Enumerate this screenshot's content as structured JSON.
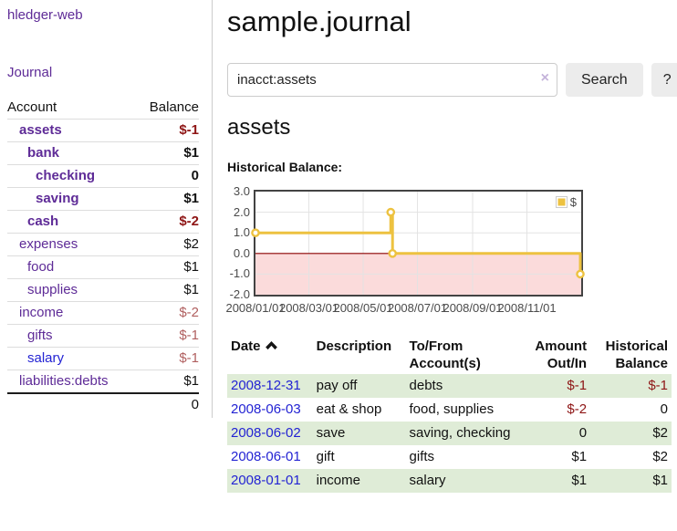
{
  "app_title": "hledger-web",
  "sidebar": {
    "journal_link": "Journal",
    "accounts": {
      "col_account": "Account",
      "col_balance": "Balance",
      "rows": [
        {
          "name": "assets",
          "balance": "$-1",
          "depth": 1,
          "bold": true,
          "balance_style": "neg-strong"
        },
        {
          "name": "bank",
          "balance": "$1",
          "depth": 2,
          "bold": true,
          "balance_style": "pos"
        },
        {
          "name": "checking",
          "balance": "0",
          "depth": 3,
          "bold": true,
          "balance_style": "pos"
        },
        {
          "name": "saving",
          "balance": "$1",
          "depth": 3,
          "bold": true,
          "balance_style": "pos"
        },
        {
          "name": "cash",
          "balance": "$-2",
          "depth": 2,
          "bold": true,
          "balance_style": "neg-strong"
        },
        {
          "name": "expenses",
          "balance": "$2",
          "depth": 1,
          "bold": false,
          "balance_style": "pos"
        },
        {
          "name": "food",
          "balance": "$1",
          "depth": 2,
          "bold": false,
          "balance_style": "pos"
        },
        {
          "name": "supplies",
          "balance": "$1",
          "depth": 2,
          "bold": false,
          "balance_style": "pos"
        },
        {
          "name": "income",
          "balance": "$-2",
          "depth": 1,
          "bold": false,
          "balance_style": "neg-soft"
        },
        {
          "name": "gifts",
          "balance": "$-1",
          "depth": 2,
          "bold": false,
          "balance_style": "neg-soft"
        },
        {
          "name": "salary",
          "balance": "$-1",
          "depth": 2,
          "bold": false,
          "balance_style": "neg-soft",
          "link_style": "unvisited"
        },
        {
          "name": "liabilities:debts",
          "balance": "$1",
          "depth": 1,
          "bold": false,
          "balance_style": "pos"
        }
      ],
      "total": "0"
    }
  },
  "header": {
    "title": "sample.journal"
  },
  "search": {
    "query": "inacct:assets",
    "clear_icon": "×",
    "search_label": "Search",
    "help_label": "?"
  },
  "account_page": {
    "heading": "assets",
    "chart_title": "Historical Balance:"
  },
  "chart_data": {
    "type": "line",
    "style": "step",
    "series": [
      {
        "name": "$",
        "color": "#EDC240",
        "points": [
          [
            "2008-01-01",
            1
          ],
          [
            "2008-06-01",
            2
          ],
          [
            "2008-06-03",
            0
          ],
          [
            "2008-12-31",
            -1
          ]
        ]
      }
    ],
    "x_range": [
      "2008-01-01",
      "2009-01-01"
    ],
    "x_ticks": [
      "2008/01/01",
      "2008/03/01",
      "2008/05/01",
      "2008/07/01",
      "2008/09/01",
      "2008/11/01"
    ],
    "y_ticks": [
      "3.0",
      "2.0",
      "1.0",
      "0.0",
      "-1.0",
      "-2.0"
    ],
    "ylim": [
      -2,
      3
    ],
    "grid": true,
    "legend": {
      "label": "$",
      "position": "top-right"
    },
    "negative_region_color": "#fbdbdb",
    "zero_line_color": "#8b0000",
    "marker": "open-circle"
  },
  "register": {
    "columns": [
      {
        "label": "Date",
        "align": "left",
        "sorted": true,
        "sort_direction": "asc"
      },
      {
        "label": "Description",
        "align": "left"
      },
      {
        "label": "To/From Account(s)",
        "align": "left"
      },
      {
        "label": "Amount Out/In",
        "align": "right"
      },
      {
        "label": "Historical Balance",
        "align": "right"
      }
    ],
    "rows": [
      {
        "date": "2008-12-31",
        "description": "pay off",
        "accounts": "debts",
        "amount": "$-1",
        "amount_neg": true,
        "balance": "$-1",
        "balance_neg": true
      },
      {
        "date": "2008-06-03",
        "description": "eat & shop",
        "accounts": "food, supplies",
        "amount": "$-2",
        "amount_neg": true,
        "balance": "0",
        "balance_neg": false
      },
      {
        "date": "2008-06-02",
        "description": "save",
        "accounts": "saving, checking",
        "amount": "0",
        "amount_neg": false,
        "balance": "$2",
        "balance_neg": false
      },
      {
        "date": "2008-06-01",
        "description": "gift",
        "accounts": "gifts",
        "amount": "$1",
        "amount_neg": false,
        "balance": "$2",
        "balance_neg": false
      },
      {
        "date": "2008-01-01",
        "description": "income",
        "accounts": "salary",
        "amount": "$1",
        "amount_neg": false,
        "balance": "$1",
        "balance_neg": false
      }
    ]
  },
  "colors": {
    "link_purple": "#5e2b97",
    "link_blue": "#2323d3",
    "negative_strong": "#8e1515",
    "negative_soft": "#b05f5f",
    "row_stripe_green": "#dfecd7",
    "chart_line_gold": "#EDC240"
  }
}
